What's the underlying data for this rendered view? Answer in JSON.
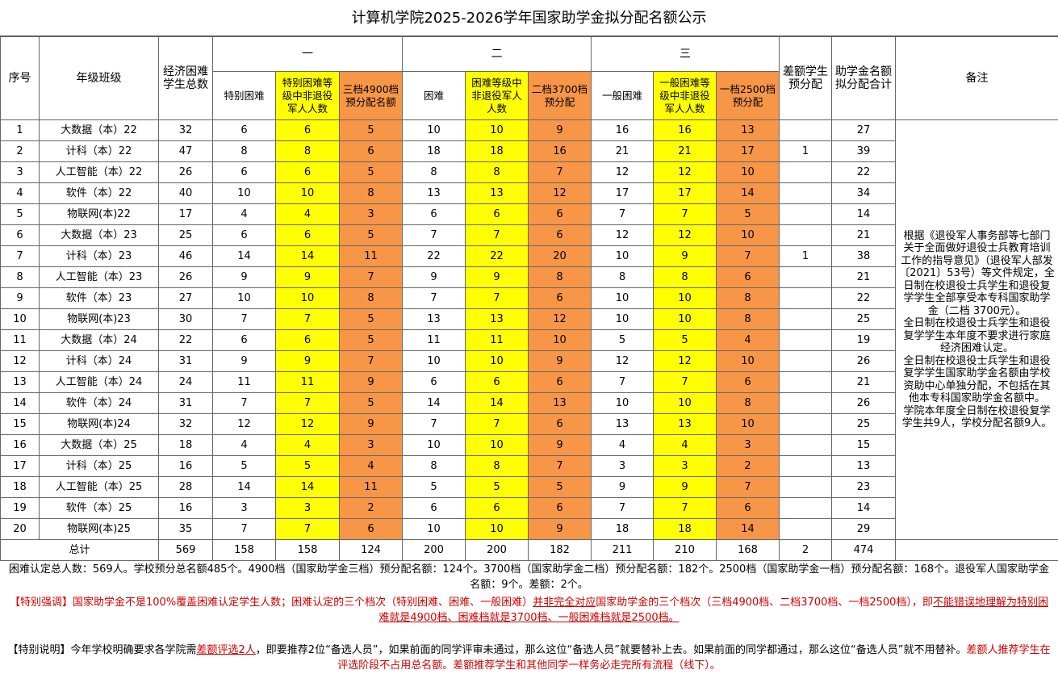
{
  "header": {
    "title": "计算机学院2025-2026学年国家助学金拟分配名额公示"
  },
  "table": {
    "group_headers": [
      "一",
      "二",
      "三"
    ],
    "columns": [
      "序号",
      "年级班级",
      "经济困难学生总数",
      "特别困难",
      "特别困难等级中非退役军人人数",
      "三档4900档预分配名额",
      "困难",
      "困难等级中非退役军人人数",
      "二档3700档预分配",
      "一般困难",
      "一般困难等级中非退役军人人数",
      "一档2500档预分配",
      "差额学生预分配",
      "助学金名额拟分配合计",
      "备注"
    ],
    "rows": [
      [
        1,
        "大数据（本）22",
        32,
        6,
        6,
        5,
        10,
        10,
        9,
        16,
        16,
        13,
        null,
        27
      ],
      [
        2,
        "计科（本）22",
        47,
        8,
        8,
        6,
        18,
        18,
        16,
        21,
        21,
        17,
        1,
        39
      ],
      [
        3,
        "人工智能（本）22",
        26,
        6,
        6,
        5,
        8,
        8,
        7,
        12,
        12,
        10,
        null,
        22
      ],
      [
        4,
        "软件（本）22",
        40,
        10,
        10,
        8,
        13,
        13,
        12,
        17,
        17,
        14,
        null,
        34
      ],
      [
        5,
        "物联网(本)22",
        17,
        4,
        4,
        3,
        6,
        6,
        6,
        7,
        7,
        5,
        null,
        14
      ],
      [
        6,
        "大数据（本）23",
        25,
        6,
        6,
        5,
        7,
        7,
        6,
        12,
        12,
        10,
        null,
        21
      ],
      [
        7,
        "计科（本）23",
        46,
        14,
        14,
        11,
        22,
        22,
        20,
        10,
        9,
        7,
        1,
        38
      ],
      [
        8,
        "人工智能（本）23",
        26,
        9,
        9,
        7,
        9,
        9,
        8,
        8,
        8,
        6,
        null,
        21
      ],
      [
        9,
        "软件（本）23",
        27,
        10,
        10,
        8,
        7,
        7,
        6,
        10,
        10,
        8,
        null,
        22
      ],
      [
        10,
        "物联网(本)23",
        30,
        7,
        7,
        5,
        13,
        13,
        12,
        10,
        10,
        8,
        null,
        25
      ],
      [
        11,
        "大数据（本）24",
        22,
        6,
        6,
        5,
        11,
        11,
        10,
        5,
        5,
        4,
        null,
        19
      ],
      [
        12,
        "计科（本）24",
        31,
        9,
        9,
        7,
        10,
        10,
        9,
        12,
        12,
        10,
        null,
        26
      ],
      [
        13,
        "人工智能（本）24",
        24,
        11,
        11,
        9,
        6,
        6,
        6,
        7,
        7,
        6,
        null,
        21
      ],
      [
        14,
        "软件（本）24",
        31,
        7,
        7,
        5,
        14,
        14,
        13,
        10,
        10,
        8,
        null,
        26
      ],
      [
        15,
        "物联网(本)24",
        32,
        12,
        12,
        9,
        7,
        7,
        6,
        13,
        13,
        10,
        null,
        25
      ],
      [
        16,
        "大数据（本）25",
        18,
        4,
        4,
        3,
        10,
        10,
        9,
        4,
        4,
        3,
        null,
        15
      ],
      [
        17,
        "计科（本）25",
        16,
        5,
        5,
        4,
        8,
        8,
        7,
        3,
        3,
        2,
        null,
        13
      ],
      [
        18,
        "人工智能（本）25",
        28,
        14,
        14,
        11,
        5,
        5,
        5,
        9,
        9,
        7,
        null,
        23
      ],
      [
        19,
        "软件（本）25",
        16,
        3,
        3,
        2,
        6,
        6,
        6,
        7,
        7,
        6,
        null,
        14
      ],
      [
        20,
        "物联网(本)25",
        35,
        7,
        7,
        6,
        10,
        10,
        9,
        18,
        18,
        14,
        null,
        29
      ]
    ],
    "total": [
      "总计",
      569,
      158,
      158,
      124,
      200,
      200,
      182,
      211,
      210,
      168,
      2,
      474
    ],
    "remark": [
      "根据《退役军人事务部等七部门关于全面做好退役士兵教育培训工作的指导意见》（退役军人部发〔2021〕53号）等文件规定，全日制在校退役士兵学生和退役复学学生全部享受本专科国家助学金（二档 3700元）。",
      "全日制在校退役士兵学生和退役复学学生本年度不要求进行家庭经济困难认定。",
      "全日制在校退役士兵学生和退役复学学生国家助学金名额由学校资助中心单独分配，不包括在其他本专科国家助学金名额中。",
      "学院本年度全日制在校退役复学学生共9人，学校分配名额9人。"
    ]
  },
  "notes": [
    [
      {
        "text": "困难认定总人数：569人。学校预分总名额485个。4900档（国家助学金三档）预分配名额：124个。3700档（国家助学金二档）预分配名额：182个。2500档（国家助学金一档）预分配名额：168个。退役军人国家助学金名额：9个。差额：2个。",
        "color": "black",
        "underline": false
      }
    ],
    [
      {
        "text": "【特别强调】国家助学金不是100%覆盖困难认定学生人数；困难认定的三个档次（特别困难、困难、一般困难）",
        "color": "red",
        "underline": false
      },
      {
        "text": "并非完全对应",
        "color": "red",
        "underline": true
      },
      {
        "text": "国家助学金的三个档次（三档4900档、二档3700档、一档2500档），即",
        "color": "red",
        "underline": false
      },
      {
        "text": "不能错误地理解为特别困难就是4900档、困难档就是3700档、一般困难档就是2500档。",
        "color": "red",
        "underline": true
      }
    ],
    [
      {
        "text": "【特别说明】今年学校明确要求各学院需",
        "color": "black",
        "underline": false
      },
      {
        "text": "差额评选2人",
        "color": "red",
        "underline": true
      },
      {
        "text": "，即要推荐2位“备选人员”，如果前面的同学评审未通过，那么这位“备选人员”就要替补上去。如果前面的同学都通过，那么这位“备选人员”就不用替补。",
        "color": "black",
        "underline": false
      },
      {
        "text": "差额人推荐学生在评选阶段不占用总名额。差额推荐学生和其他同学一样务必走完所有流程（线下）。",
        "color": "red",
        "underline": false
      }
    ]
  ]
}
